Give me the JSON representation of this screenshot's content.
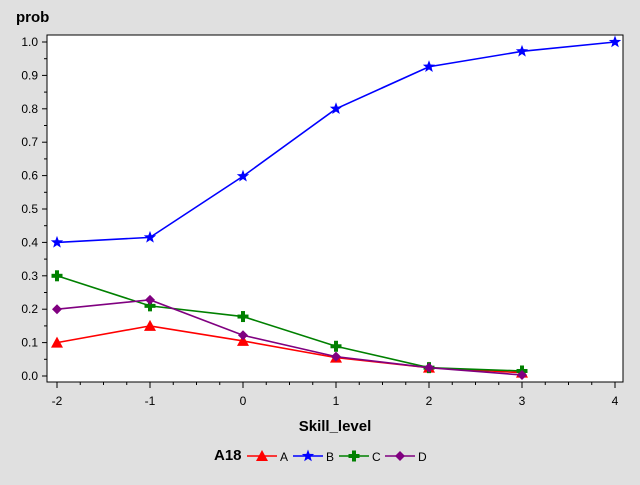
{
  "chart_data": {
    "type": "line",
    "title": "",
    "xlabel": "Skill_level",
    "ylabel": "prob",
    "x_ticks": [
      "-2",
      "-1",
      "0",
      "1",
      "2",
      "3",
      "4"
    ],
    "y_ticks": [
      "0.0",
      "0.1",
      "0.2",
      "0.3",
      "0.4",
      "0.5",
      "0.6",
      "0.7",
      "0.8",
      "0.9",
      "1.0"
    ],
    "xlim": [
      -2,
      4
    ],
    "ylim": [
      0,
      1
    ],
    "grid": false,
    "legend": {
      "title": "A18",
      "placement": "bottom"
    },
    "series": [
      {
        "name": "A",
        "color": "#ff0000",
        "marker": "triangle",
        "x": [
          -2,
          -1,
          0,
          1,
          2,
          3
        ],
        "y": [
          0.1,
          0.15,
          0.105,
          0.055,
          0.025,
          0.01
        ]
      },
      {
        "name": "B",
        "color": "#0000ff",
        "marker": "star",
        "x": [
          -2,
          -1,
          0,
          1,
          2,
          3,
          4
        ],
        "y": [
          0.4,
          0.415,
          0.598,
          0.8,
          0.926,
          0.972,
          1.0
        ]
      },
      {
        "name": "C",
        "color": "#008000",
        "marker": "plus",
        "x": [
          -2,
          -1,
          0,
          1,
          2,
          3
        ],
        "y": [
          0.3,
          0.21,
          0.178,
          0.089,
          0.025,
          0.015
        ]
      },
      {
        "name": "D",
        "color": "#800080",
        "marker": "diamond",
        "x": [
          -2,
          -1,
          0,
          1,
          2,
          3
        ],
        "y": [
          0.2,
          0.228,
          0.122,
          0.058,
          0.025,
          0.003
        ]
      }
    ]
  }
}
